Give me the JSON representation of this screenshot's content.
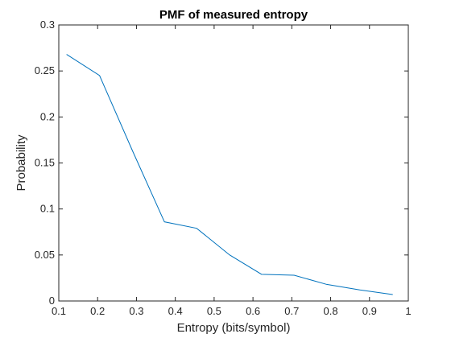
{
  "chart_data": {
    "type": "line",
    "title": "PMF of measured entropy",
    "xlabel": "Entropy (bits/symbol)",
    "ylabel": "Probability",
    "xlim": [
      0.1,
      1
    ],
    "ylim": [
      0,
      0.3
    ],
    "xticks": [
      0.1,
      0.2,
      0.3,
      0.4,
      0.5,
      0.6,
      0.7,
      0.8,
      0.9,
      1
    ],
    "xtick_labels": [
      "0.1",
      "0.2",
      "0.3",
      "0.4",
      "0.5",
      "0.6",
      "0.7",
      "0.8",
      "0.9",
      "1"
    ],
    "yticks": [
      0,
      0.05,
      0.1,
      0.15,
      0.2,
      0.25,
      0.3
    ],
    "ytick_labels": [
      "0",
      "0.05",
      "0.1",
      "0.15",
      "0.2",
      "0.25",
      "0.3"
    ],
    "grid": false,
    "box": true,
    "line_color": "#0072BD",
    "series": [
      {
        "x": [
          0.12,
          0.205,
          0.29,
          0.372,
          0.455,
          0.54,
          0.622,
          0.706,
          0.79,
          0.875,
          0.96
        ],
        "y": [
          0.268,
          0.245,
          0.163,
          0.086,
          0.079,
          0.05,
          0.029,
          0.028,
          0.018,
          0.012,
          0.007
        ]
      }
    ]
  }
}
